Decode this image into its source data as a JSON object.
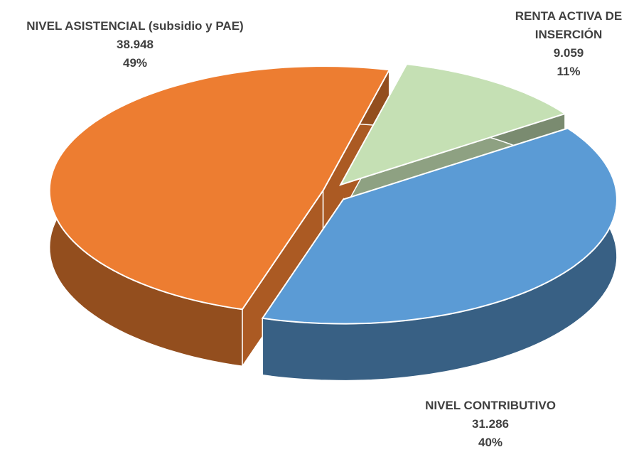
{
  "chart_data": {
    "type": "pie",
    "categories": [
      "RENTA ACTIVA DE INSERCIÓN",
      "NIVEL CONTRIBUTIVO",
      "NIVEL ASISTENCIAL (subsidio y PAE)"
    ],
    "values": [
      9059,
      31286,
      38948
    ],
    "value_labels": [
      "9.059",
      "31.286",
      "38.948"
    ],
    "percents": [
      11,
      40,
      49
    ],
    "percent_labels": [
      "11%",
      "40%",
      "49%"
    ],
    "colors": [
      "#C5E0B4",
      "#5B9BD5",
      "#ED7D31"
    ]
  }
}
